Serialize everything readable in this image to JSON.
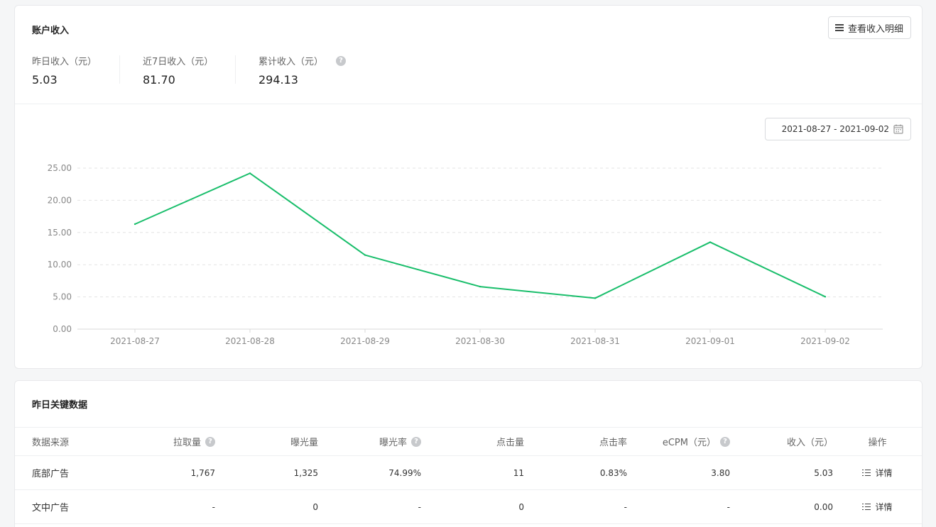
{
  "summary": {
    "title": "账户收入",
    "detail_button": "查看收入明细",
    "stats": [
      {
        "label": "昨日收入（元）",
        "value": "5.03"
      },
      {
        "label": "近7日收入（元）",
        "value": "81.70"
      },
      {
        "label": "累计收入（元）",
        "value": "294.13"
      }
    ],
    "help_symbol": "?",
    "date_range": "2021-08-27 - 2021-09-02"
  },
  "chart_data": {
    "type": "line",
    "x": [
      "2021-08-27",
      "2021-08-28",
      "2021-08-29",
      "2021-08-30",
      "2021-08-31",
      "2021-09-01",
      "2021-09-02"
    ],
    "series": [
      {
        "values": [
          16.3,
          24.2,
          11.5,
          6.6,
          4.8,
          13.5,
          5.03
        ],
        "color": "#19be6b"
      }
    ],
    "yticks": [
      "0.00",
      "5.00",
      "10.00",
      "15.00",
      "20.00",
      "25.00"
    ],
    "ylim": [
      0,
      25
    ],
    "grid": true,
    "grid_style": "dashed"
  },
  "key_data": {
    "title": "昨日关键数据",
    "columns": [
      "数据来源",
      "拉取量",
      "曝光量",
      "曝光率",
      "点击量",
      "点击率",
      "eCPM（元）",
      "收入（元）",
      "操作"
    ],
    "help_columns": [
      1,
      3,
      6
    ],
    "rows": [
      [
        "底部广告",
        "1,767",
        "1,325",
        "74.99%",
        "11",
        "0.83%",
        "3.80",
        "5.03"
      ],
      [
        "文中广告",
        "-",
        "0",
        "-",
        "0",
        "-",
        "-",
        "0.00"
      ]
    ],
    "action_label": "详情"
  }
}
